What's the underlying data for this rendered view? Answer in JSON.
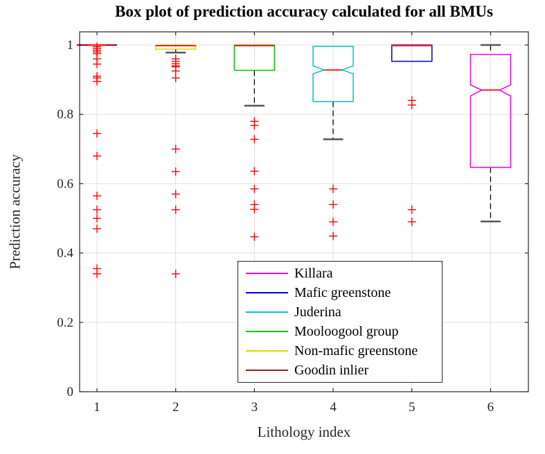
{
  "chart_data": {
    "type": "box",
    "title": "Box plot of prediction accuracy calculated for all BMUs",
    "xlabel": "Lithology index",
    "ylabel": "Prediction accuracy",
    "xticks": [
      1,
      2,
      3,
      4,
      5,
      6
    ],
    "yticks": [
      0,
      0.2,
      0.4,
      0.6,
      0.8,
      1
    ],
    "xlim": [
      0.78,
      6.48
    ],
    "ylim": [
      0,
      1.038
    ],
    "grid": true,
    "legend_position": "lower-center",
    "axis_color": "#262626",
    "grid_color": "#e0e0e0",
    "median_color": "#ff2222",
    "outlier_color": "#ff0000",
    "outlier_marker": "plus",
    "whisker_cap_color": "#555555",
    "series": [
      {
        "name": "Killara",
        "color": "#ee00ee",
        "lithology_index": 6,
        "q1": 0.647,
        "median": 0.87,
        "q3": 0.973,
        "whisker_low": 0.491,
        "whisker_high": 1.0,
        "notch": true,
        "notch_low": 0.853,
        "notch_high": 0.885,
        "outliers": []
      },
      {
        "name": "Mafic greenstone",
        "color": "#0000cc",
        "lithology_index": 5,
        "q1": 0.953,
        "median": 0.998,
        "q3": 1.0,
        "whisker_low": 0.953,
        "whisker_high": 1.0,
        "notch": false,
        "outliers": [
          0.84,
          0.827,
          0.525,
          0.49
        ]
      },
      {
        "name": "Juderina",
        "color": "#00c4c4",
        "lithology_index": 4,
        "q1": 0.837,
        "median": 0.928,
        "q3": 0.996,
        "whisker_low": 0.728,
        "whisker_high": 0.996,
        "notch": true,
        "notch_low": 0.917,
        "notch_high": 0.94,
        "outliers": [
          0.585,
          0.54,
          0.49,
          0.449
        ]
      },
      {
        "name": "Mooloogool group",
        "color": "#00c800",
        "lithology_index": 3,
        "q1": 0.927,
        "median": 0.998,
        "q3": 1.0,
        "whisker_low": 0.825,
        "whisker_high": 1.0,
        "notch": false,
        "outliers": [
          0.78,
          0.768,
          0.728,
          0.636,
          0.585,
          0.54,
          0.526,
          0.447
        ]
      },
      {
        "name": "Non-mafic greenstone",
        "color": "#d9d900",
        "lithology_index": 2,
        "q1": 0.988,
        "median": 0.998,
        "q3": 1.0,
        "whisker_low": 0.978,
        "whisker_high": 1.0,
        "notch": false,
        "outliers": [
          0.96,
          0.953,
          0.946,
          0.94,
          0.937,
          0.925,
          0.905,
          0.7,
          0.635,
          0.57,
          0.525,
          0.34
        ]
      },
      {
        "name": "Goodin inlier",
        "color": "#a81622",
        "lithology_index": 1,
        "q1": 1.0,
        "median": 1.0,
        "q3": 1.0,
        "whisker_low": 1.0,
        "whisker_high": 1.0,
        "notch": false,
        "outliers": [
          0.995,
          0.99,
          0.985,
          0.98,
          0.975,
          0.96,
          0.945,
          0.91,
          0.905,
          0.895,
          0.745,
          0.68,
          0.565,
          0.525,
          0.5,
          0.47,
          0.355,
          0.34
        ]
      }
    ]
  }
}
